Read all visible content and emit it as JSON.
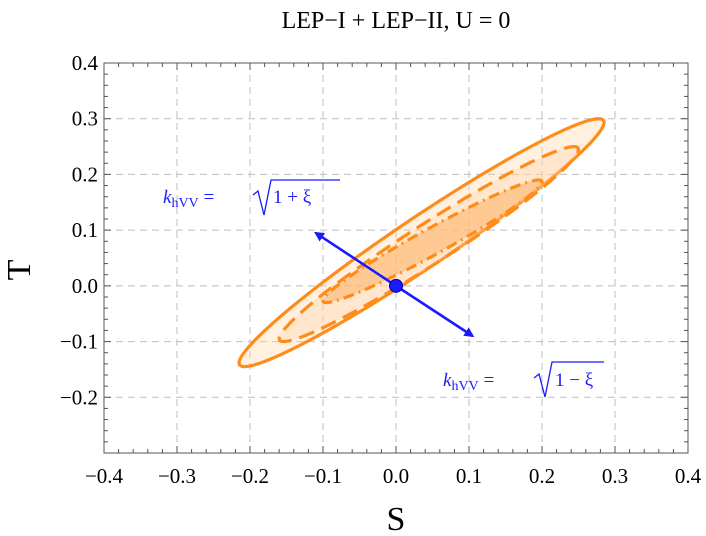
{
  "chart_data": {
    "type": "contour",
    "title": "LEP−I + LEP−II, U = 0",
    "xlabel": "S",
    "ylabel": "T",
    "xlim": [
      -0.4,
      0.4
    ],
    "ylim": [
      -0.3,
      0.4
    ],
    "x_ticks": [
      -0.4,
      -0.3,
      -0.2,
      -0.1,
      0.0,
      0.1,
      0.2,
      0.3,
      0.4
    ],
    "x_tick_labels": [
      "−0.4",
      "−0.3",
      "−0.2",
      "−0.1",
      "0.0",
      "0.1",
      "0.2",
      "0.3",
      "0.4"
    ],
    "y_ticks": [
      -0.2,
      -0.1,
      0.0,
      0.1,
      0.2,
      0.3,
      0.4
    ],
    "y_tick_labels": [
      "−0.2",
      "−0.1",
      "0.0",
      "0.1",
      "0.2",
      "0.3",
      "0.4"
    ],
    "grid": true,
    "colors": {
      "ellipse": "#ff8c1a",
      "fill": "#ffd3a6",
      "arrow": "#1a1aff",
      "grid": "#bfbfbf"
    },
    "ellipses": [
      {
        "name": "outer",
        "style": "solid",
        "center": [
          0.035,
          0.08
        ],
        "extent_S": [
          -0.215,
          0.285
        ],
        "extent_T": [
          -0.145,
          0.3
        ],
        "fill_opacity": 0.35
      },
      {
        "name": "middle",
        "style": "dashed",
        "center": [
          0.045,
          0.075
        ],
        "extent_S": [
          -0.16,
          0.25
        ],
        "extent_T": [
          -0.1,
          0.25
        ],
        "fill_opacity": 0.35
      },
      {
        "name": "inner",
        "style": "dash-dot",
        "center": [
          0.05,
          0.075
        ],
        "extent_S": [
          -0.1,
          0.2
        ],
        "extent_T": [
          -0.03,
          0.19
        ],
        "fill_opacity": 0.55
      }
    ],
    "point": {
      "S": 0.0,
      "T": 0.0
    },
    "arrows": [
      {
        "from": [
          0.0,
          0.0
        ],
        "to": [
          -0.11,
          0.095
        ]
      },
      {
        "from": [
          0.0,
          0.0
        ],
        "to": [
          0.105,
          -0.09
        ]
      }
    ],
    "annotations": [
      {
        "k": "k",
        "sub": "hVV",
        "eq": "=",
        "root_content": "1 + ξ",
        "position": "upper-left"
      },
      {
        "k": "k",
        "sub": "hVV",
        "eq": "=",
        "root_content": "1 − ξ",
        "position": "lower-right"
      }
    ]
  }
}
